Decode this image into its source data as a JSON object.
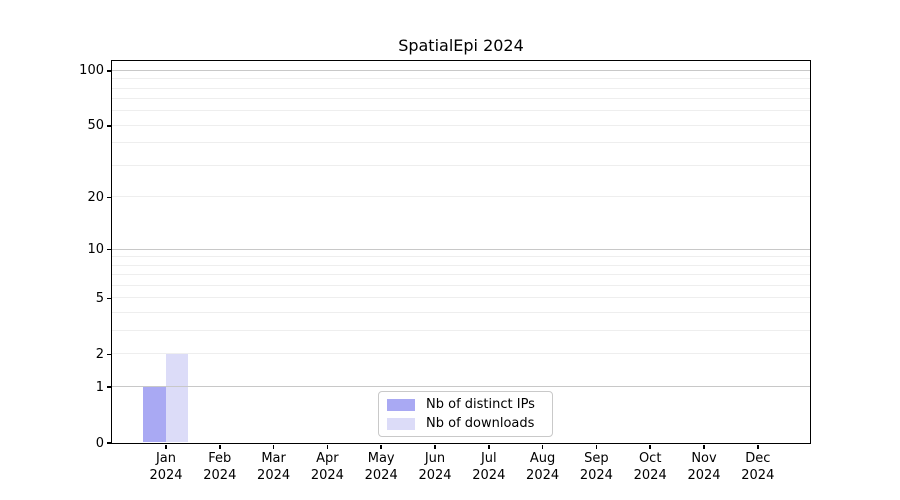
{
  "figure": {
    "background": "#ffffff"
  },
  "chart_data": {
    "type": "bar",
    "title": "SpatialEpi 2024",
    "categories": [
      "Jan 2024",
      "Feb 2024",
      "Mar 2024",
      "Apr 2024",
      "May 2024",
      "Jun 2024",
      "Jul 2024",
      "Aug 2024",
      "Sep 2024",
      "Oct 2024",
      "Nov 2024",
      "Dec 2024"
    ],
    "series": [
      {
        "name": "Nb of distinct IPs",
        "color": "#a9a9f3",
        "values": [
          1,
          0,
          0,
          0,
          0,
          0,
          0,
          0,
          0,
          0,
          0,
          0
        ]
      },
      {
        "name": "Nb of downloads",
        "color": "#dcdcf8",
        "values": [
          2,
          0,
          0,
          0,
          0,
          0,
          0,
          0,
          0,
          0,
          0,
          0
        ]
      }
    ],
    "yscale": "log1p",
    "ylim": [
      0,
      113
    ],
    "yticks": [
      0,
      1,
      2,
      5,
      10,
      20,
      50,
      100
    ],
    "major_gridlines": [
      1,
      10,
      100
    ],
    "minor_gridlines": [
      2,
      3,
      4,
      5,
      6,
      7,
      8,
      9,
      20,
      30,
      40,
      50,
      60,
      70,
      80,
      90
    ],
    "grid": true,
    "legend_position": "lower center",
    "xlabel": "",
    "ylabel": ""
  },
  "colors": {
    "grid_major": "#c8c8c8",
    "grid_minor": "#eeeeee",
    "spine": "#000000",
    "legend_border": "#c9c9c9",
    "text": "#000000"
  }
}
